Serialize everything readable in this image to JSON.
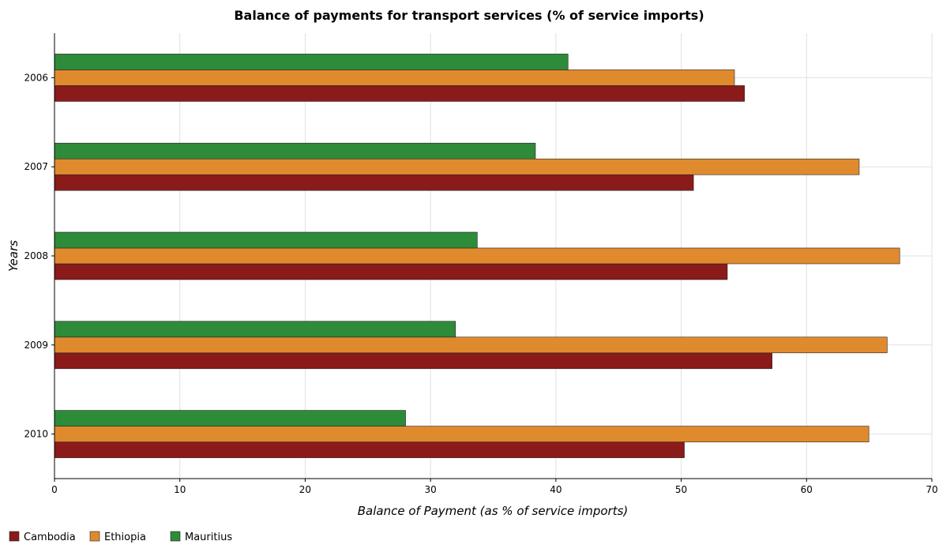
{
  "chart_data": {
    "type": "bar",
    "orientation": "horizontal",
    "title": "Balance of payments for transport services (% of service imports)",
    "xlabel": "Balance of Payment (as % of service imports)",
    "ylabel": "Years",
    "categories": [
      "2006",
      "2007",
      "2008",
      "2009",
      "2010"
    ],
    "xlim": [
      0,
      70
    ],
    "xticks": [
      0,
      10,
      20,
      30,
      40,
      50,
      60,
      70
    ],
    "grid": true,
    "legend_position": "bottom-left",
    "series": [
      {
        "name": "Cambodia",
        "color": "#8b1a1a",
        "values": [
          55.05,
          50.98,
          53.68,
          57.25,
          50.25
        ]
      },
      {
        "name": "Ethiopia",
        "color": "#e08a2e",
        "values": [
          54.25,
          64.2,
          67.43,
          66.43,
          64.97
        ]
      },
      {
        "name": "Mauritius",
        "color": "#2e8b3a",
        "values": [
          40.97,
          38.37,
          33.73,
          31.99,
          28.01
        ]
      }
    ]
  }
}
